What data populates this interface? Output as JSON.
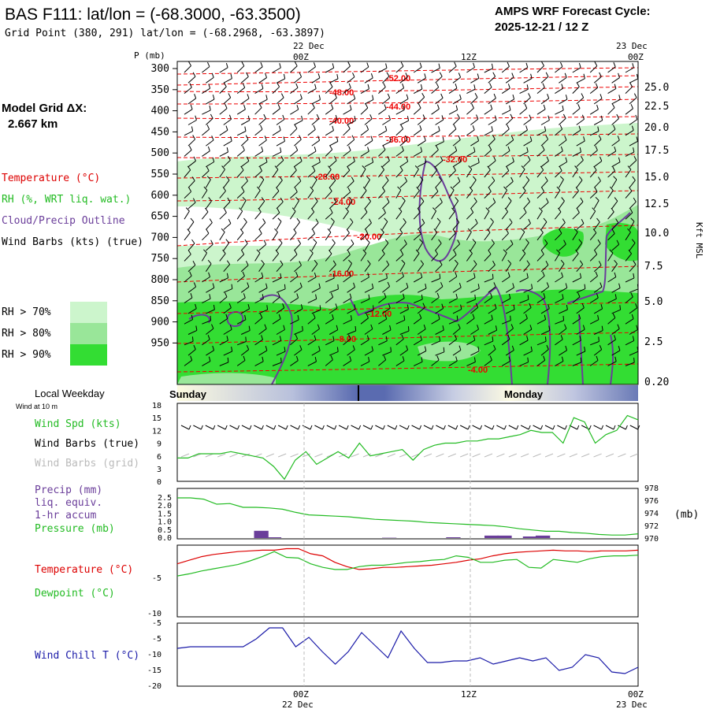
{
  "header": {
    "title": "BAS F111:  lat/lon = (-68.3000, -63.3500)",
    "grid_point": "Grid Point (380, 291) lat/lon = (-68.2968, -63.3897)",
    "cycle_line1": "AMPS WRF Forecast Cycle:",
    "cycle_line2": "2025-12-21 / 12  Z"
  },
  "time_axis": {
    "labels": [
      "00Z",
      "12Z",
      "00Z"
    ],
    "dates": [
      "22 Dec",
      "23 Dec"
    ]
  },
  "model_grid": {
    "label": "Model Grid ΔX:",
    "value": "2.667 km"
  },
  "legend": {
    "temperature": "Temperature (°C)",
    "rh": "RH (%, WRT liq. wat.)",
    "cloud": "Cloud/Precip Outline",
    "wind": "Wind Barbs (kts) (true)",
    "rh_levels": [
      "RH > 70%",
      "RH > 80%",
      "RH > 90%"
    ],
    "colors": {
      "rh70": "#ccf5cc",
      "rh80": "#99e699",
      "rh90": "#33dd33",
      "temp": "#ee0000",
      "cloud": "#6a3d9a"
    }
  },
  "weekday": {
    "label": "Local Weekday",
    "sublabel": "Wind at 10 m",
    "days": [
      "Sunday",
      "Monday"
    ]
  },
  "chart_data": [
    {
      "type": "heatmap",
      "title": "Vertical cross-section",
      "ylabel": "P (mb)",
      "ylabel_right": "Kft MSL",
      "pressure_ticks": [
        "300",
        "350",
        "400",
        "450",
        "500",
        "550",
        "600",
        "650",
        "700",
        "750",
        "800",
        "850",
        "900",
        "950"
      ],
      "height_ticks": [
        "25.0",
        "22.5",
        "20.0",
        "17.5",
        "15.0",
        "12.5",
        "10.0",
        "7.5",
        "5.0",
        "2.5",
        "0.20"
      ],
      "temperature_contours": [
        "-52.00",
        "-48.00",
        "-44.00",
        "-40.00",
        "-36.00",
        "-32.00",
        "-28.00",
        "-24.00",
        "-20.00",
        "-16.00",
        "-12.00",
        "-8.00",
        "-4.00"
      ]
    },
    {
      "type": "line",
      "labels": [
        "Wind Spd (kts)",
        "Wind Barbs (true)",
        "Wind Barbs (grid)"
      ],
      "ylim": [
        0,
        18
      ],
      "yticks": [
        "18",
        "15",
        "12",
        "9",
        "6",
        "3",
        "0"
      ],
      "wind_speed": [
        5.5,
        5.5,
        6.5,
        6.5,
        6.5,
        7,
        6.5,
        6,
        5.5,
        3.5,
        0.5,
        5,
        7,
        4,
        5.5,
        7,
        5.5,
        9,
        6,
        6.5,
        7,
        7.5,
        5,
        7.5,
        8.5,
        9,
        9,
        9.5,
        9.5,
        10,
        10,
        10.5,
        11,
        12,
        11.5,
        11.5,
        9,
        15,
        14,
        9,
        11,
        12,
        15.5,
        14.5
      ]
    },
    {
      "type": "bar",
      "labels": [
        "Precip (mm)",
        "liq. equiv.",
        "1-hr accum",
        "Pressure (mb)"
      ],
      "ylim": [
        0,
        2.5
      ],
      "yticks": [
        "2.5",
        "2.0",
        "1.5",
        "1.0",
        "0.5",
        "0.0"
      ],
      "yticks_right": [
        "978",
        "976",
        "974",
        "972",
        "970"
      ],
      "right_unit": "(mb)",
      "precip_bars": [
        [
          6,
          0.45
        ],
        [
          7,
          0.05
        ],
        [
          16,
          0.02
        ],
        [
          21,
          0.05
        ],
        [
          24,
          0.15
        ],
        [
          25,
          0.15
        ],
        [
          27,
          0.1
        ],
        [
          28,
          0.15
        ]
      ],
      "pressure": [
        976.5,
        976.5,
        976.3,
        975.5,
        975.6,
        975,
        975,
        974.9,
        974.7,
        974.2,
        973.8,
        973.7,
        973.6,
        973.5,
        973.3,
        973.1,
        973,
        972.9,
        972.8,
        972.6,
        972.5,
        972.4,
        972.3,
        972.2,
        972.1,
        971.9,
        971.6,
        971.4,
        971.2,
        971.2,
        971,
        970.9,
        970.7,
        970.6,
        970.6,
        970.8
      ]
    },
    {
      "type": "line",
      "labels": [
        "Temperature (°C)",
        "Dewpoint (°C)"
      ],
      "ylim": [
        -10,
        0
      ],
      "yticks": [
        "-5",
        "-10"
      ],
      "temperature": [
        -2.6,
        -2.1,
        -1.6,
        -1.3,
        -1.1,
        -0.9,
        -0.8,
        -0.7,
        -0.7,
        -0.5,
        -0.5,
        -1.2,
        -1.5,
        -2.4,
        -3,
        -3.4,
        -3.3,
        -3.1,
        -3.1,
        -3,
        -2.9,
        -2.8,
        -2.6,
        -2.4,
        -2.1,
        -1.9,
        -1.5,
        -1.2,
        -1,
        -0.9,
        -0.8,
        -0.7,
        -0.8,
        -0.8,
        -0.9,
        -0.8,
        -0.8,
        -0.8,
        -0.7
      ],
      "dewpoint": [
        -4.3,
        -4,
        -3.6,
        -3.3,
        -3,
        -2.7,
        -2.2,
        -1.6,
        -0.9,
        -1.7,
        -1.8,
        -2.6,
        -3.1,
        -3.4,
        -3.4,
        -3,
        -2.8,
        -2.8,
        -2.6,
        -2.4,
        -2.3,
        -2.1,
        -2,
        -1.5,
        -1.7,
        -2.4,
        -2.4,
        -2.1,
        -2,
        -3.1,
        -3.2,
        -2,
        -2.2,
        -2.4,
        -1.9,
        -1.6,
        -1.5,
        -1.5,
        -1.4
      ]
    },
    {
      "type": "line",
      "labels": [
        "Wind Chill T (°C)"
      ],
      "ylim": [
        -20,
        0
      ],
      "yticks": [
        "-5",
        "-10",
        "-15",
        "-20"
      ],
      "wind_chill": [
        -8,
        -7.5,
        -7.5,
        -7.5,
        -7.5,
        -7.5,
        -5,
        -1.5,
        -1.5,
        -7.5,
        -4.5,
        -9,
        -13,
        -9,
        -3,
        -7,
        -11,
        -2.5,
        -8,
        -12.5,
        -12.5,
        -12,
        -12,
        -11,
        -13,
        -12,
        -11,
        -12,
        -11,
        -15,
        -14,
        -10,
        -11,
        -15.5,
        -16,
        -14
      ]
    }
  ]
}
